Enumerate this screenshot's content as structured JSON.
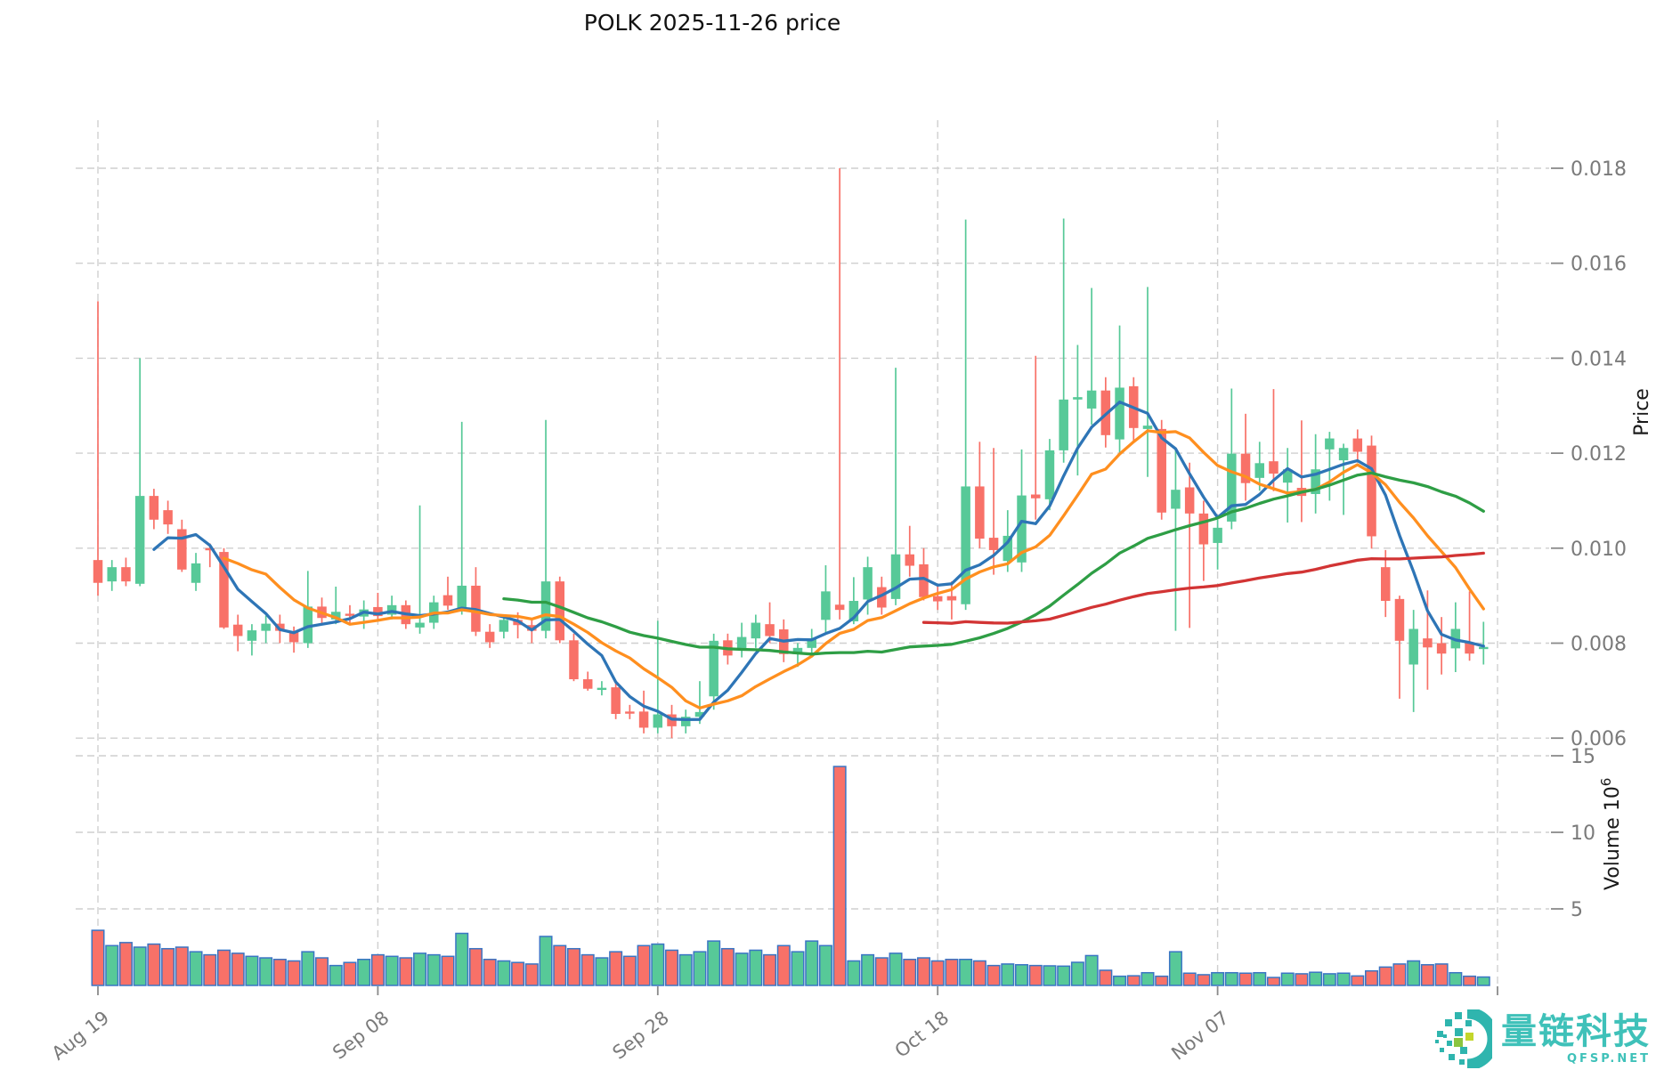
{
  "title": "POLK  2025-11-26  price",
  "chart_data": {
    "type": "candlestick",
    "title": "POLK  2025-11-26  price",
    "start_date": "2025-08-19",
    "end_date": "2025-11-26",
    "x_tick_labels": [
      "Aug 19",
      "Sep 08",
      "Sep 28",
      "Oct 18",
      "Nov 07"
    ],
    "x_tick_interval_days": 20,
    "price_axis": {
      "label": "Price",
      "ticks": [
        "0.018",
        "0.016",
        "0.014",
        "0.012",
        "0.010",
        "0.008",
        "0.006"
      ],
      "min": 0.006,
      "max": 0.018,
      "grid": "dashed"
    },
    "volume_axis": {
      "label": "Volume 10⁶",
      "label_main": "Volume  10",
      "label_sup": "6",
      "ticks": [
        "15",
        "10",
        "5"
      ],
      "unit_millions": 1000000
    },
    "moving_averages": [
      {
        "name": "MA5",
        "window": 5,
        "color": "#2e75b6"
      },
      {
        "name": "MA10",
        "window": 10,
        "color": "#ff8f1f"
      },
      {
        "name": "MA30",
        "window": 30,
        "color": "#2e9e45"
      },
      {
        "name": "MA60",
        "window": 60,
        "color": "#d23434"
      }
    ],
    "colors": {
      "up": "#57c998",
      "down": "#f87168",
      "volume_outline": "#3a75c4",
      "grid": "#cfcfcf",
      "tick_text": "#7a7a7a",
      "axis_label_text": "#1a1a1a",
      "title_text": "#111111",
      "background": "#ffffff"
    },
    "candles_format": [
      "open",
      "high",
      "low",
      "close",
      "volume_millions"
    ],
    "candles": [
      [
        0.00975,
        0.0152,
        0.009,
        0.00927,
        3.6
      ],
      [
        0.0093,
        0.00975,
        0.0091,
        0.0096,
        2.6
      ],
      [
        0.0096,
        0.0098,
        0.0092,
        0.0093,
        2.8
      ],
      [
        0.00925,
        0.014,
        0.0092,
        0.0111,
        2.5
      ],
      [
        0.0111,
        0.01125,
        0.0104,
        0.0106,
        2.7
      ],
      [
        0.0108,
        0.011,
        0.0103,
        0.0105,
        2.4
      ],
      [
        0.0104,
        0.0106,
        0.0095,
        0.00955,
        2.5
      ],
      [
        0.00927,
        0.0099,
        0.0091,
        0.00968,
        2.2
      ],
      [
        0.01,
        0.0101,
        0.0096,
        0.00996,
        2.0
      ],
      [
        0.00992,
        0.01,
        0.0083,
        0.00833,
        2.3
      ],
      [
        0.00839,
        0.0086,
        0.00783,
        0.00815,
        2.1
      ],
      [
        0.00805,
        0.0084,
        0.00774,
        0.00827,
        1.9
      ],
      [
        0.00826,
        0.00858,
        0.008,
        0.00841,
        1.8
      ],
      [
        0.00841,
        0.0086,
        0.008,
        0.00826,
        1.7
      ],
      [
        0.00824,
        0.00835,
        0.0078,
        0.00802,
        1.6
      ],
      [
        0.008,
        0.00952,
        0.0079,
        0.00877,
        2.2
      ],
      [
        0.00877,
        0.00896,
        0.0084,
        0.00853,
        1.8
      ],
      [
        0.0085,
        0.00919,
        0.0084,
        0.00866,
        1.3
      ],
      [
        0.00862,
        0.0088,
        0.0084,
        0.0086,
        1.5
      ],
      [
        0.00856,
        0.0089,
        0.0083,
        0.00871,
        1.7
      ],
      [
        0.00876,
        0.00906,
        0.0085,
        0.00857,
        2.0
      ],
      [
        0.0086,
        0.009,
        0.0085,
        0.0088,
        1.9
      ],
      [
        0.0088,
        0.0089,
        0.0083,
        0.0084,
        1.8
      ],
      [
        0.00833,
        0.0109,
        0.0082,
        0.00843,
        2.1
      ],
      [
        0.00843,
        0.009,
        0.0083,
        0.00886,
        2.0
      ],
      [
        0.00901,
        0.0094,
        0.0087,
        0.00879,
        1.9
      ],
      [
        0.00871,
        0.01266,
        0.0086,
        0.00921,
        3.4
      ],
      [
        0.00921,
        0.0096,
        0.00815,
        0.00824,
        2.4
      ],
      [
        0.00824,
        0.0084,
        0.0079,
        0.00802,
        1.7
      ],
      [
        0.00824,
        0.0086,
        0.0081,
        0.00849,
        1.6
      ],
      [
        0.00849,
        0.00865,
        0.0081,
        0.00838,
        1.5
      ],
      [
        0.00838,
        0.0085,
        0.008,
        0.00826,
        1.4
      ],
      [
        0.00826,
        0.0127,
        0.0081,
        0.0093,
        3.2
      ],
      [
        0.0093,
        0.0094,
        0.008,
        0.00806,
        2.6
      ],
      [
        0.00806,
        0.0082,
        0.0072,
        0.00724,
        2.4
      ],
      [
        0.00724,
        0.0074,
        0.007,
        0.00704,
        2.0
      ],
      [
        0.00704,
        0.0072,
        0.0069,
        0.00706,
        1.8
      ],
      [
        0.00707,
        0.0072,
        0.0064,
        0.00651,
        2.2
      ],
      [
        0.00656,
        0.0067,
        0.0064,
        0.00653,
        1.9
      ],
      [
        0.00656,
        0.007,
        0.0061,
        0.00622,
        2.6
      ],
      [
        0.00622,
        0.00847,
        0.0061,
        0.0065,
        2.7
      ],
      [
        0.0065,
        0.0067,
        0.006,
        0.00625,
        2.3
      ],
      [
        0.00625,
        0.0066,
        0.0061,
        0.00645,
        2.0
      ],
      [
        0.00645,
        0.0072,
        0.0063,
        0.00655,
        2.2
      ],
      [
        0.00688,
        0.0082,
        0.0066,
        0.00805,
        2.9
      ],
      [
        0.00806,
        0.0082,
        0.00755,
        0.00774,
        2.4
      ],
      [
        0.00787,
        0.00843,
        0.0077,
        0.00813,
        2.1
      ],
      [
        0.0081,
        0.0086,
        0.0079,
        0.00843,
        2.3
      ],
      [
        0.0084,
        0.00886,
        0.008,
        0.00815,
        2.0
      ],
      [
        0.00829,
        0.0085,
        0.0076,
        0.00777,
        2.6
      ],
      [
        0.00777,
        0.008,
        0.0075,
        0.0079,
        2.2
      ],
      [
        0.0079,
        0.0083,
        0.0077,
        0.0081,
        2.9
      ],
      [
        0.00849,
        0.00964,
        0.0082,
        0.00909,
        2.6
      ],
      [
        0.00881,
        0.018,
        0.0085,
        0.0087,
        14.3
      ],
      [
        0.00846,
        0.00939,
        0.0084,
        0.00889,
        1.6
      ],
      [
        0.00892,
        0.00982,
        0.0086,
        0.0096,
        2.0
      ],
      [
        0.00918,
        0.0094,
        0.0086,
        0.00875,
        1.8
      ],
      [
        0.00893,
        0.0138,
        0.0088,
        0.00987,
        2.1
      ],
      [
        0.00987,
        0.01047,
        0.0094,
        0.00963,
        1.7
      ],
      [
        0.00966,
        0.01,
        0.0089,
        0.00897,
        1.8
      ],
      [
        0.00899,
        0.0092,
        0.0087,
        0.00888,
        1.6
      ],
      [
        0.00899,
        0.0093,
        0.0085,
        0.0089,
        1.7
      ],
      [
        0.00882,
        0.01692,
        0.0087,
        0.0113,
        1.7
      ],
      [
        0.0113,
        0.01224,
        0.01,
        0.0102,
        1.6
      ],
      [
        0.01022,
        0.01211,
        0.00944,
        0.00996,
        1.3
      ],
      [
        0.00973,
        0.0108,
        0.0095,
        0.01026,
        1.4
      ],
      [
        0.0097,
        0.01208,
        0.0095,
        0.01111,
        1.35
      ],
      [
        0.01113,
        0.01405,
        0.0106,
        0.01105,
        1.3
      ],
      [
        0.01103,
        0.0123,
        0.0108,
        0.01206,
        1.28
      ],
      [
        0.01206,
        0.01694,
        0.0118,
        0.01313,
        1.26
      ],
      [
        0.01313,
        0.01428,
        0.01153,
        0.01318,
        1.51
      ],
      [
        0.01294,
        0.01548,
        0.0126,
        0.01332,
        1.95
      ],
      [
        0.01332,
        0.0136,
        0.01212,
        0.01238,
        0.99
      ],
      [
        0.01229,
        0.01469,
        0.012,
        0.01338,
        0.6
      ],
      [
        0.01341,
        0.0136,
        0.01222,
        0.01253,
        0.63
      ],
      [
        0.01251,
        0.0155,
        0.0115,
        0.01258,
        0.83
      ],
      [
        0.01251,
        0.0127,
        0.0106,
        0.01075,
        0.6
      ],
      [
        0.01083,
        0.0121,
        0.00826,
        0.01123,
        2.2
      ],
      [
        0.01128,
        0.0118,
        0.00832,
        0.01073,
        0.8
      ],
      [
        0.01073,
        0.011,
        0.00931,
        0.01008,
        0.7
      ],
      [
        0.01011,
        0.0106,
        0.00955,
        0.01043,
        0.83
      ],
      [
        0.01056,
        0.01336,
        0.0104,
        0.01199,
        0.83
      ],
      [
        0.01199,
        0.01283,
        0.011,
        0.01137,
        0.8
      ],
      [
        0.01148,
        0.01224,
        0.01121,
        0.01179,
        0.83
      ],
      [
        0.01183,
        0.01335,
        0.0112,
        0.01157,
        0.52
      ],
      [
        0.01138,
        0.01211,
        0.01054,
        0.01166,
        0.8
      ],
      [
        0.01127,
        0.01269,
        0.01055,
        0.0111,
        0.76
      ],
      [
        0.01114,
        0.0124,
        0.01073,
        0.01166,
        0.86
      ],
      [
        0.01208,
        0.01245,
        0.011,
        0.01231,
        0.76
      ],
      [
        0.01185,
        0.0122,
        0.0107,
        0.01211,
        0.8
      ],
      [
        0.01231,
        0.0125,
        0.0118,
        0.01203,
        0.62
      ],
      [
        0.01216,
        0.01237,
        0.00999,
        0.01025,
        0.95
      ],
      [
        0.0096,
        0.00996,
        0.00855,
        0.00889,
        1.2
      ],
      [
        0.00893,
        0.009,
        0.00683,
        0.00805,
        1.4
      ],
      [
        0.00755,
        0.0087,
        0.00655,
        0.0083,
        1.6
      ],
      [
        0.0081,
        0.00911,
        0.00702,
        0.00791,
        1.35
      ],
      [
        0.008,
        0.00855,
        0.00734,
        0.00778,
        1.4
      ],
      [
        0.00789,
        0.00886,
        0.00739,
        0.0083,
        0.83
      ],
      [
        0.008,
        0.00909,
        0.00763,
        0.00778,
        0.6
      ],
      [
        0.0079,
        0.00845,
        0.00755,
        0.00792,
        0.55
      ]
    ]
  },
  "watermark": {
    "brand": "量链科技",
    "site": "QFSP.NET",
    "color": "#3fc1b9"
  }
}
